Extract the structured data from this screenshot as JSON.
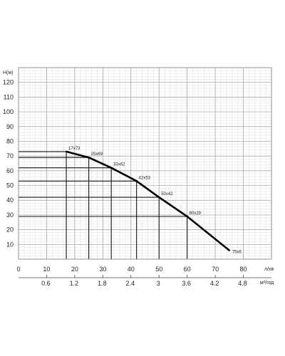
{
  "chart_data": {
    "type": "line",
    "title": "",
    "ylabel": "H(м)",
    "xlabel": "л/хв",
    "x2label": "м³/год",
    "xlim": [
      0,
      90
    ],
    "ylim": [
      0,
      130
    ],
    "x_ticks": [
      0,
      10,
      20,
      30,
      40,
      50,
      60,
      70,
      80
    ],
    "y_ticks": [
      10,
      20,
      30,
      40,
      50,
      60,
      70,
      80,
      90,
      100,
      110,
      120
    ],
    "x2_ticks": [
      "0.6",
      "1.2",
      "1.8",
      "2.4",
      "3",
      "3.6",
      "4.2",
      "4.8"
    ],
    "x2_values": [
      10,
      20,
      30,
      40,
      50,
      60,
      70,
      80
    ],
    "grid": true,
    "series": [
      {
        "points": [
          {
            "x": 17,
            "y": 73,
            "label": "17x73"
          },
          {
            "x": 25,
            "y": 69,
            "label": "25x69"
          },
          {
            "x": 33,
            "y": 62,
            "label": "33x62"
          },
          {
            "x": 42,
            "y": 53,
            "label": "42x53"
          },
          {
            "x": 50,
            "y": 42,
            "label": "50x42"
          },
          {
            "x": 60,
            "y": 29,
            "label": "60x29"
          },
          {
            "x": 75,
            "y": 6,
            "label": "75x6"
          }
        ]
      }
    ]
  }
}
